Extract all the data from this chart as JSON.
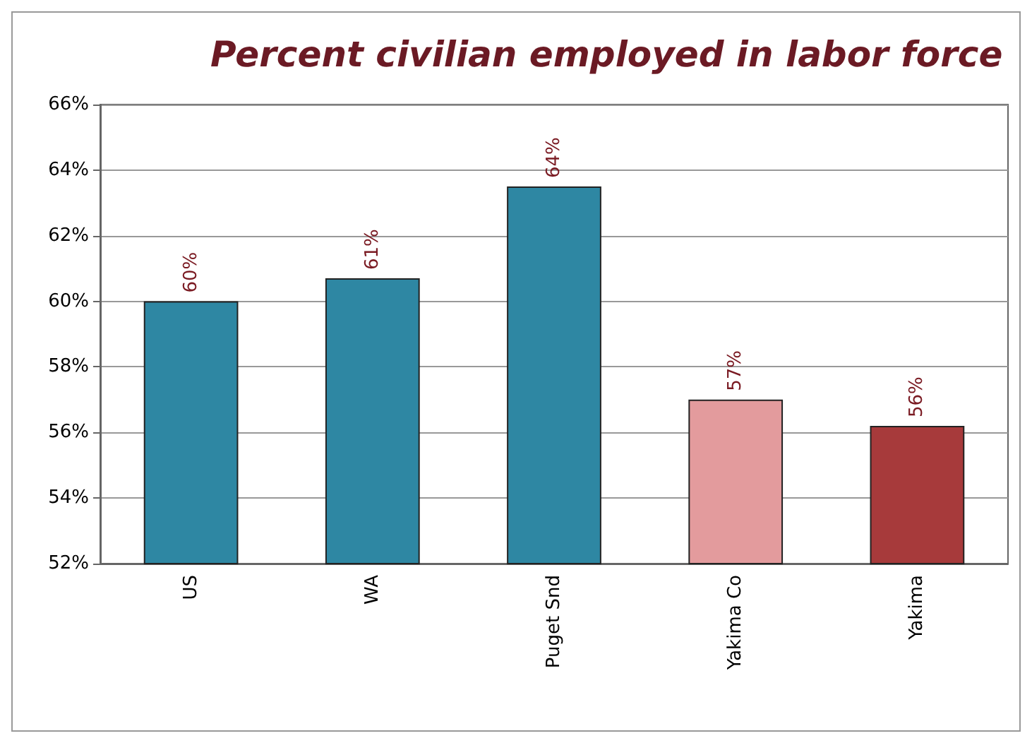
{
  "chart_data": {
    "type": "bar",
    "title": "Percent civilian employed in labor force",
    "categories": [
      "US",
      "WA",
      "Puget Snd",
      "Yakima Co",
      "Yakima"
    ],
    "values": [
      60,
      60.7,
      63.5,
      57,
      56.2
    ],
    "colors": [
      "#2e87a3",
      "#2e87a3",
      "#2e87a3",
      "#e39b9d",
      "#a73a3b"
    ],
    "value_labels": [
      "60%",
      "61%",
      "64%",
      "57%",
      "56%"
    ],
    "ylim": [
      52,
      66
    ],
    "yticks": [
      {
        "value": 52,
        "label": "52%"
      },
      {
        "value": 54,
        "label": "54%"
      },
      {
        "value": 56,
        "label": "56%"
      },
      {
        "value": 58,
        "label": "58%"
      },
      {
        "value": 60,
        "label": "60%"
      },
      {
        "value": 62,
        "label": "62%"
      },
      {
        "value": 64,
        "label": "64%"
      },
      {
        "value": 66,
        "label": "66%"
      }
    ],
    "grid": "y"
  }
}
